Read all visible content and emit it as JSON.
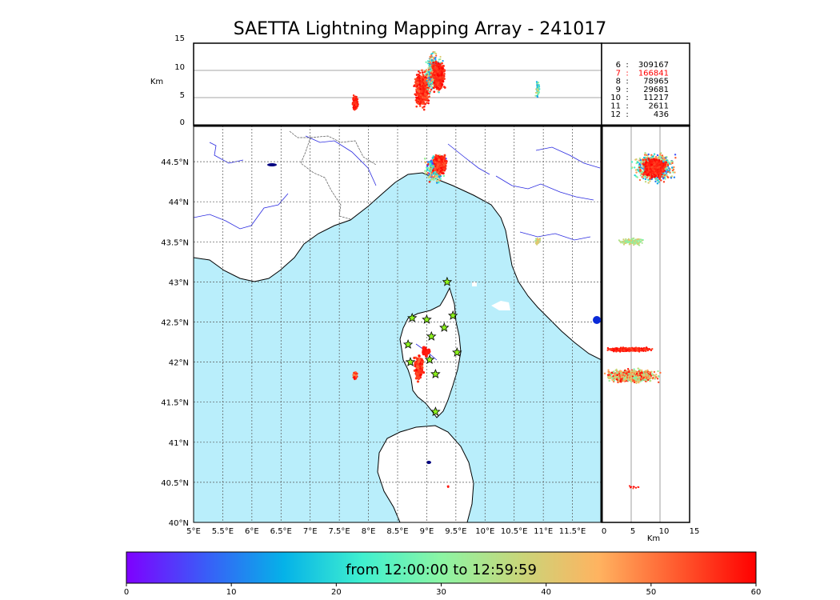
{
  "title": "SAETTA Lightning Mapping Array - 241017",
  "colors": {
    "sea": "#b9eefb",
    "coast": "#000000",
    "rivers": "#2a2ae0",
    "borders": "#555555",
    "station_fill": "#8cf21d"
  },
  "top_panel": {
    "ylabel": "Km",
    "ticks": [
      "15",
      "10",
      "5",
      "0"
    ]
  },
  "right_panel": {
    "xlabel": "Km",
    "ticks": [
      "0",
      "5",
      "10",
      "15"
    ]
  },
  "legend": {
    "rows": [
      {
        "key": "6",
        "value": "309167",
        "highlight": false
      },
      {
        "key": "7",
        "value": "166841",
        "highlight": true
      },
      {
        "key": "8",
        "value": "78965",
        "highlight": false
      },
      {
        "key": "9",
        "value": "29681",
        "highlight": false
      },
      {
        "key": "10",
        "value": "11217",
        "highlight": false
      },
      {
        "key": "11",
        "value": "2611",
        "highlight": false
      },
      {
        "key": "12",
        "value": "436",
        "highlight": false
      }
    ],
    "highlight_color": "#ff0000"
  },
  "map": {
    "lon_ticks": [
      "5°E",
      "5.5°E",
      "6°E",
      "6.5°E",
      "7°E",
      "7.5°E",
      "8°E",
      "8.5°E",
      "9°E",
      "9.5°E",
      "10°E",
      "10.5°E",
      "11°E",
      "11.5°E"
    ],
    "lat_ticks": [
      "44.5°N",
      "44°N",
      "43.5°N",
      "43°N",
      "42.5°N",
      "42°N",
      "41.5°N",
      "41°N",
      "40.5°N",
      "40°N"
    ],
    "lon_range": [
      5,
      12
    ],
    "lat_range": [
      40,
      44.95
    ],
    "stations": [
      {
        "lon": 9.35,
        "lat": 43.0
      },
      {
        "lon": 8.75,
        "lat": 42.55
      },
      {
        "lon": 9.0,
        "lat": 42.53
      },
      {
        "lon": 9.45,
        "lat": 42.58
      },
      {
        "lon": 9.3,
        "lat": 42.43
      },
      {
        "lon": 9.08,
        "lat": 42.32
      },
      {
        "lon": 8.68,
        "lat": 42.22
      },
      {
        "lon": 9.52,
        "lat": 42.12
      },
      {
        "lon": 8.72,
        "lat": 42.0
      },
      {
        "lon": 9.05,
        "lat": 42.03
      },
      {
        "lon": 9.15,
        "lat": 41.85
      },
      {
        "lon": 9.15,
        "lat": 41.38
      }
    ]
  },
  "colorbar": {
    "label": "from 12:00:00 to 12:59:59",
    "ticks": [
      "0",
      "10",
      "20",
      "30",
      "40",
      "50",
      "60"
    ],
    "stops": [
      "#7f00ff",
      "#3a5cf8",
      "#05b2e8",
      "#3ff0cf",
      "#8cf5a4",
      "#c8d67a",
      "#ffb360",
      "#ff5a2e",
      "#ff0000"
    ]
  }
}
